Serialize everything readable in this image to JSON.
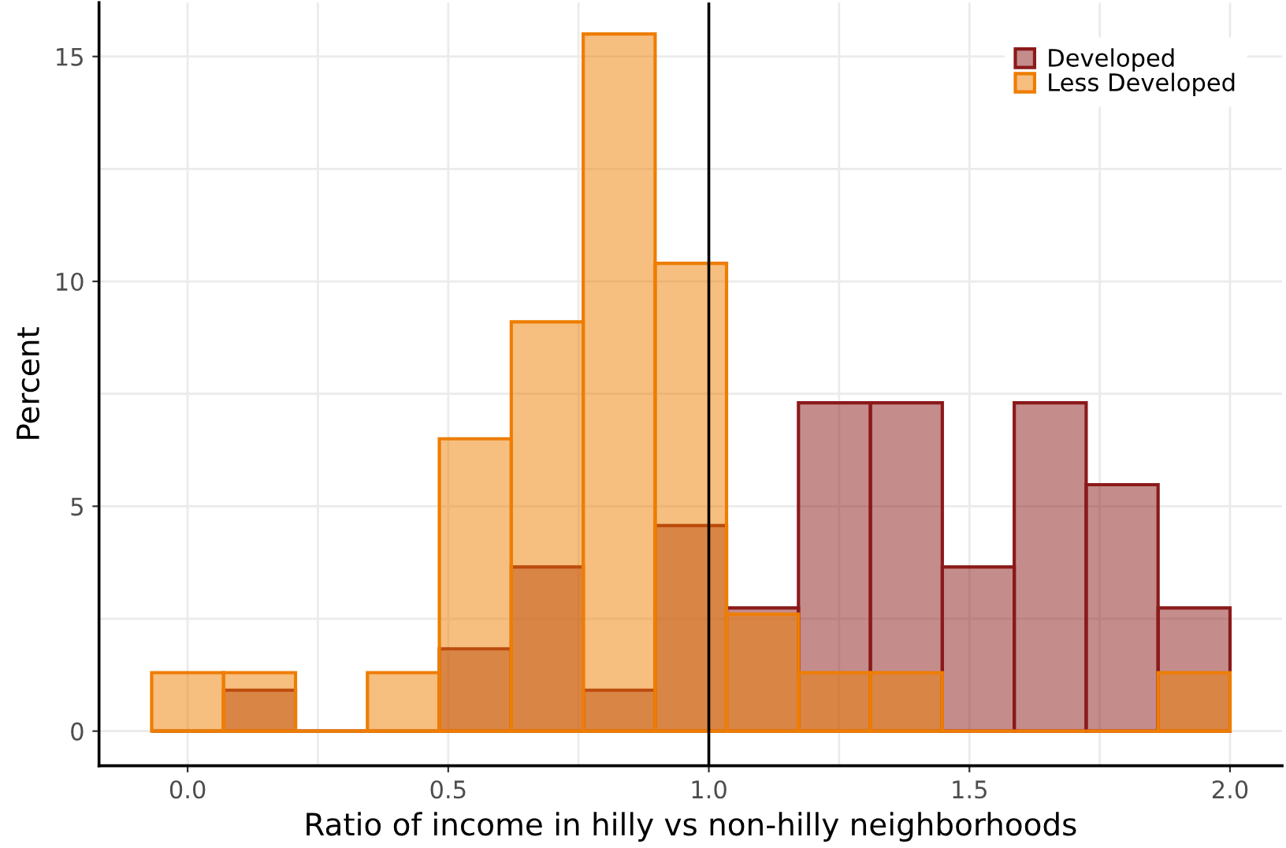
{
  "chart_data": {
    "type": "histogram",
    "xlabel": "Ratio of income in hilly vs non-hilly neighborhoods",
    "ylabel": "Percent",
    "bins": [
      -0.069,
      0.069,
      0.207,
      0.345,
      0.483,
      0.621,
      0.759,
      0.897,
      1.034,
      1.172,
      1.31,
      1.448,
      1.586,
      1.724,
      1.862,
      2.0
    ],
    "series": [
      {
        "name": "Developed",
        "color": "#8b1a1a",
        "values": [
          0,
          0.91,
          0,
          0,
          1.83,
          3.65,
          0.91,
          4.57,
          2.74,
          7.3,
          7.3,
          3.65,
          7.3,
          5.48,
          2.74
        ]
      },
      {
        "name": "Less Developed",
        "color": "#ee7d00",
        "values": [
          1.3,
          1.3,
          0,
          1.3,
          6.5,
          9.1,
          15.5,
          10.4,
          2.6,
          1.3,
          1.3,
          0,
          0,
          0,
          1.3
        ]
      }
    ],
    "xlim": [
      -0.17,
      2.1
    ],
    "ylim": [
      -0.77,
      16.2
    ],
    "xticks": [
      {
        "value": 0,
        "label": "0.0"
      },
      {
        "value": 0.25,
        "label": null
      },
      {
        "value": 0.5,
        "label": "0.5"
      },
      {
        "value": 0.75,
        "label": null
      },
      {
        "value": 1,
        "label": "1.0"
      },
      {
        "value": 1.25,
        "label": null
      },
      {
        "value": 1.5,
        "label": "1.5"
      },
      {
        "value": 1.75,
        "label": null
      },
      {
        "value": 2,
        "label": "2.0"
      }
    ],
    "yticks": [
      0,
      {
        "value": 2.5,
        "label": null
      },
      5,
      {
        "value": 7.5,
        "label": null
      },
      10,
      {
        "value": 12.5,
        "label": null
      },
      15
    ],
    "ref_lines": [
      {
        "axis": "x",
        "value": 1,
        "label": null,
        "color": "#000000"
      }
    ],
    "grid": true,
    "legend": "top right"
  }
}
